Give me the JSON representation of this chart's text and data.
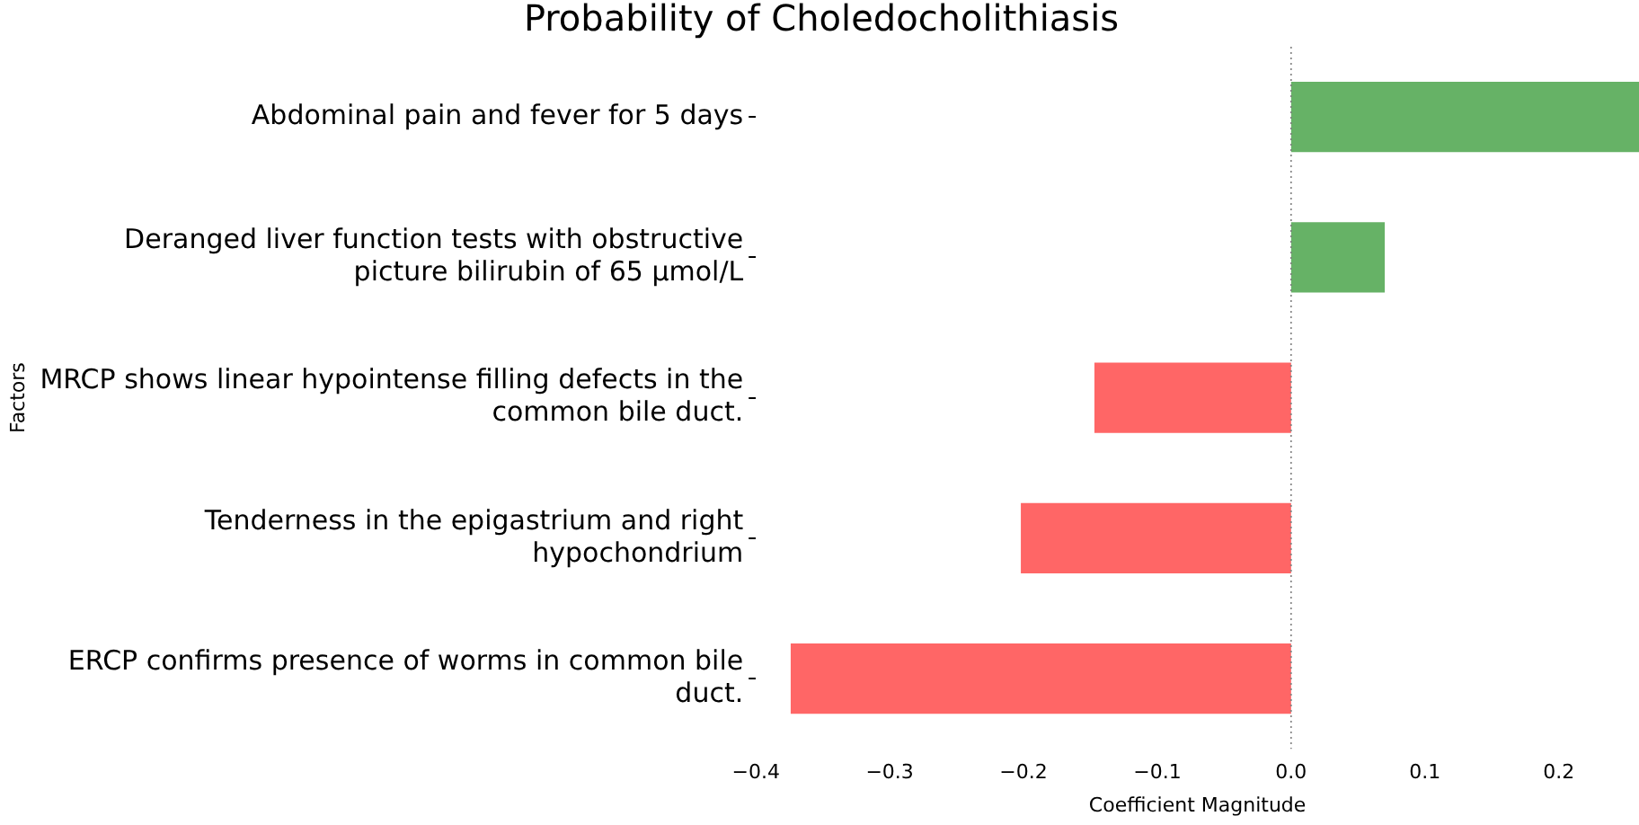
{
  "chart_data": {
    "type": "bar",
    "orientation": "horizontal",
    "title": "Probability of Choledocholithiasis",
    "xlabel": "Coefficient Magnitude",
    "ylabel": "Factors",
    "categories": [
      "Abdominal pain and fever for 5 days",
      "Deranged liver function tests with obstructive picture bilirubin of 65 µmol/L",
      "MRCP shows linear hypointense filling defects in the common bile duct.",
      "Tenderness in the epigastrium and right hypochondrium",
      "ERCP confirms presence of worms in common bile duct."
    ],
    "values": [
      0.26,
      0.07,
      -0.147,
      -0.202,
      -0.374
    ],
    "colors": [
      "#66b266",
      "#66b266",
      "#ff6666",
      "#ff6666",
      "#ff6666"
    ],
    "xlim": [
      -0.4,
      0.26
    ],
    "xticks": [
      {
        "value": -0.4,
        "label": "−0.4"
      },
      {
        "value": -0.3,
        "label": "−0.3"
      },
      {
        "value": -0.2,
        "label": "−0.2"
      },
      {
        "value": -0.1,
        "label": "−0.1"
      },
      {
        "value": 0,
        "label": "0.0"
      },
      {
        "value": 0.1,
        "label": "0.1"
      },
      {
        "value": 0.2,
        "label": "0.2"
      }
    ],
    "ref_lines": [
      {
        "axis": "x",
        "value": 0,
        "color": "#808080",
        "line_style": "dotted"
      }
    ],
    "grid": false,
    "legend": false
  }
}
